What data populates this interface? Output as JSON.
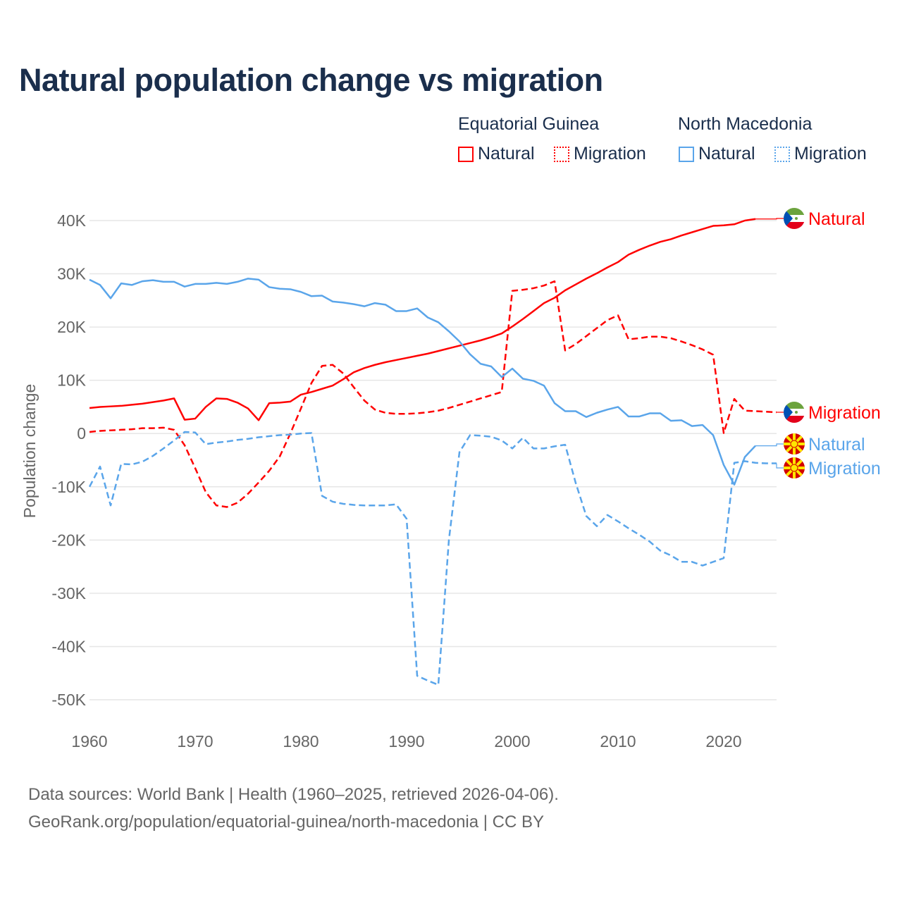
{
  "title": "Natural population change vs migration",
  "legend": {
    "groups": [
      {
        "country": "Equatorial Guinea",
        "items": [
          "Natural",
          "Migration"
        ],
        "color": "#ff0000"
      },
      {
        "country": "North Macedonia",
        "items": [
          "Natural",
          "Migration"
        ],
        "color": "#5aa5ea"
      }
    ]
  },
  "source": {
    "line1": "Data sources: World Bank | Health (1960–2025, retrieved 2026-04-06).",
    "line2": "GeoRank.org/population/equatorial-guinea/north-macedonia | CC BY"
  },
  "chart_data": {
    "type": "line",
    "title": "Natural population change vs migration",
    "xlabel": "",
    "ylabel": "Population change",
    "xlim": [
      1960,
      2025
    ],
    "ylim": [
      -50000,
      40000
    ],
    "xticks": [
      "1960",
      "1970",
      "1980",
      "1990",
      "2000",
      "2010",
      "2020"
    ],
    "yticks": [
      {
        "v": 40000,
        "label": "40K"
      },
      {
        "v": 30000,
        "label": "30K"
      },
      {
        "v": 20000,
        "label": "20K"
      },
      {
        "v": 10000,
        "label": "10K"
      },
      {
        "v": 0,
        "label": "0"
      },
      {
        "v": -10000,
        "label": "-10K"
      },
      {
        "v": -20000,
        "label": "-20K"
      },
      {
        "v": -30000,
        "label": "-30K"
      },
      {
        "v": -40000,
        "label": "-40K"
      },
      {
        "v": -50000,
        "label": "-50K"
      }
    ],
    "grid": true,
    "x_start": 1960,
    "series": [
      {
        "name": "Equatorial Guinea Natural",
        "label": "Natural",
        "flag": "equatorial-guinea",
        "color": "#ff0000",
        "dashed": false,
        "values": [
          4.8,
          5.0,
          5.1,
          5.2,
          5.4,
          5.6,
          5.9,
          6.2,
          6.6,
          2.6,
          2.8,
          5.0,
          6.6,
          6.5,
          5.8,
          4.7,
          2.5,
          5.7,
          5.8,
          6.0,
          7.3,
          7.8,
          8.4,
          9.0,
          10.2,
          11.5,
          12.3,
          12.9,
          13.4,
          13.8,
          14.2,
          14.6,
          15.0,
          15.5,
          16.0,
          16.5,
          17.0,
          17.5,
          18.1,
          18.8,
          20.1,
          21.5,
          23.0,
          24.5,
          25.5,
          26.9,
          28.0,
          29.1,
          30.1,
          31.2,
          32.2,
          33.6,
          34.5,
          35.3,
          36.0,
          36.5,
          37.2,
          37.8,
          38.4,
          39.0,
          39.1,
          39.3,
          40.0,
          40.3
        ]
      },
      {
        "name": "Equatorial Guinea Migration",
        "label": "Migration",
        "flag": "equatorial-guinea",
        "color": "#ff0000",
        "dashed": true,
        "values": [
          0.3,
          0.5,
          0.6,
          0.7,
          0.8,
          1.0,
          1.0,
          1.1,
          0.7,
          -2.2,
          -6.5,
          -11.0,
          -13.5,
          -13.8,
          -13.0,
          -11.3,
          -9.2,
          -7.0,
          -4.3,
          0.0,
          4.7,
          9.5,
          12.7,
          12.9,
          11.3,
          8.7,
          6.2,
          4.5,
          3.9,
          3.7,
          3.7,
          3.8,
          4.0,
          4.3,
          4.8,
          5.4,
          6.0,
          6.6,
          7.2,
          7.8,
          26.8,
          27.0,
          27.3,
          27.8,
          28.6,
          15.6,
          16.8,
          18.3,
          19.8,
          21.3,
          22.2,
          17.7,
          17.9,
          18.2,
          18.2,
          17.9,
          17.3,
          16.6,
          15.8,
          14.8,
          0.1,
          6.5,
          4.3,
          4.2,
          4.1,
          4.0
        ]
      },
      {
        "name": "North Macedonia Natural",
        "label": "Natural",
        "flag": "north-macedonia",
        "color": "#5aa5ea",
        "dashed": false,
        "values": [
          28.9,
          27.9,
          25.4,
          28.2,
          27.9,
          28.6,
          28.8,
          28.5,
          28.5,
          27.6,
          28.1,
          28.1,
          28.3,
          28.1,
          28.5,
          29.1,
          28.9,
          27.5,
          27.2,
          27.1,
          26.6,
          25.8,
          25.9,
          24.8,
          24.6,
          24.3,
          23.9,
          24.5,
          24.2,
          23.0,
          23.0,
          23.5,
          21.8,
          20.9,
          19.2,
          17.3,
          14.9,
          13.1,
          12.6,
          10.6,
          12.2,
          10.3,
          9.9,
          9.0,
          5.7,
          4.2,
          4.2,
          3.1,
          3.9,
          4.5,
          5.0,
          3.2,
          3.2,
          3.8,
          3.8,
          2.4,
          2.5,
          1.4,
          1.6,
          -0.3,
          -5.9,
          -9.6,
          -4.4,
          -2.3
        ]
      },
      {
        "name": "North Macedonia Migration",
        "label": "Migration",
        "flag": "north-macedonia",
        "color": "#5aa5ea",
        "dashed": true,
        "values": [
          -10.0,
          -6.2,
          -13.5,
          -5.7,
          -5.8,
          -5.3,
          -4.2,
          -2.8,
          -1.3,
          0.3,
          0.2,
          -2.0,
          -1.7,
          -1.5,
          -1.2,
          -1.0,
          -0.7,
          -0.5,
          -0.3,
          -0.2,
          0.0,
          0.1,
          -11.7,
          -12.8,
          -13.2,
          -13.4,
          -13.5,
          -13.5,
          -13.5,
          -13.3,
          -16.0,
          -45.5,
          -46.4,
          -47.2,
          -20.0,
          -3.5,
          -0.3,
          -0.4,
          -0.6,
          -1.3,
          -2.8,
          -0.8,
          -2.8,
          -2.8,
          -2.4,
          -2.1,
          -9.3,
          -15.5,
          -17.4,
          -15.3,
          -16.5,
          -17.8,
          -19.0,
          -20.3,
          -22.0,
          -22.9,
          -24.1,
          -24.1,
          -24.8,
          -24.1,
          -23.4,
          -5.5,
          -5.2,
          -5.5,
          -5.6,
          -5.6
        ]
      }
    ],
    "value_unit": "thousands"
  }
}
